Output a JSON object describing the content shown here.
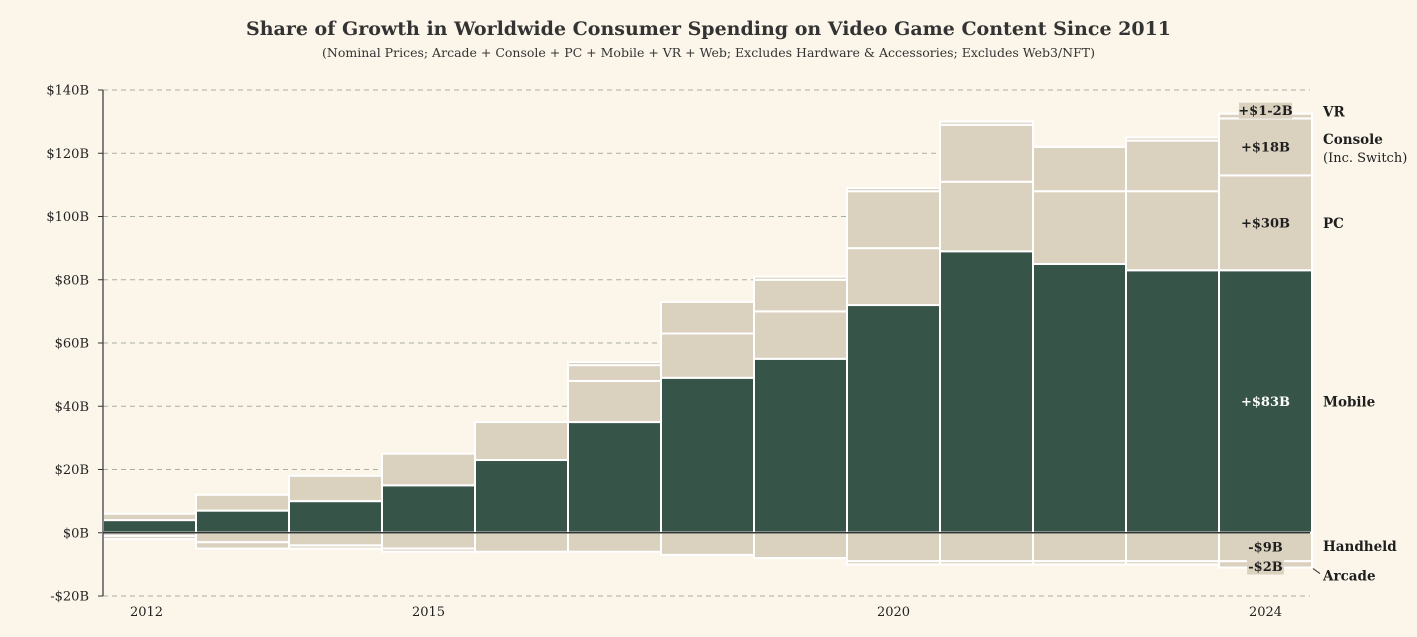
{
  "title": "Share of Growth in Worldwide Consumer Spending on Video Game Content Since 2011",
  "subtitle": "(Nominal Prices; Arcade + Console + PC + Mobile + VR + Web; Excludes Hardware & Accessories; Excludes Web3/NFT)",
  "colors": {
    "background": "#fcf6ea",
    "mobile": "#365447",
    "other": "#dbd1bf",
    "grid": "#a9aea3"
  },
  "chart_data": {
    "type": "bar",
    "stacked": true,
    "x": [
      2012,
      2013,
      2014,
      2015,
      2016,
      2017,
      2018,
      2019,
      2020,
      2021,
      2022,
      2023,
      2024
    ],
    "x_tick_labels": [
      "2012",
      "2015",
      "2020",
      "2024"
    ],
    "x_tick_years": [
      2012,
      2015,
      2020,
      2024
    ],
    "y_ticks": [
      -20,
      0,
      20,
      40,
      60,
      80,
      100,
      120,
      140
    ],
    "y_tick_labels": [
      "-$20B",
      "$0B",
      "$20B",
      "$40B",
      "$60B",
      "$80B",
      "$100B",
      "$120B",
      "$140B"
    ],
    "ylim": [
      -20,
      140
    ],
    "grid": true,
    "series": [
      {
        "name": "Mobile",
        "values": [
          4,
          7,
          10,
          15,
          23,
          35,
          49,
          55,
          72,
          89,
          85,
          83,
          83
        ]
      },
      {
        "name": "PC",
        "values": [
          2,
          5,
          8,
          10,
          12,
          13,
          14,
          15,
          18,
          22,
          23,
          25,
          30
        ]
      },
      {
        "name": "Console",
        "values": [
          0,
          0,
          0,
          0,
          0,
          5,
          10,
          10,
          18,
          18,
          14,
          16,
          18
        ]
      },
      {
        "name": "VR",
        "values": [
          0,
          0,
          0,
          0,
          0,
          1,
          0,
          1,
          1,
          1,
          0,
          1,
          1.5
        ]
      },
      {
        "name": "Handheld",
        "values": [
          -1,
          -3,
          -4,
          -5,
          -6,
          -6,
          -7,
          -8,
          -9,
          -9,
          -9,
          -9,
          -9
        ]
      },
      {
        "name": "Arcade",
        "values": [
          -1,
          -2,
          -1,
          -1,
          0,
          0,
          0,
          0,
          -1,
          -1,
          -1,
          -1,
          -2
        ]
      }
    ],
    "annotations_2024": [
      {
        "series": "VR",
        "label": "+$1-2B"
      },
      {
        "series": "Console",
        "label": "+$18B"
      },
      {
        "series": "PC",
        "label": "+$30B"
      },
      {
        "series": "Mobile",
        "label": "+$83B"
      },
      {
        "series": "Handheld",
        "label": "-$9B"
      },
      {
        "series": "Arcade",
        "label": "-$2B"
      }
    ],
    "legend_labels": [
      {
        "series": "VR",
        "text": "VR"
      },
      {
        "series": "Console",
        "text": "Console",
        "sub": "(Inc. Switch)"
      },
      {
        "series": "PC",
        "text": "PC"
      },
      {
        "series": "Mobile",
        "text": "Mobile"
      },
      {
        "series": "Handheld",
        "text": "Handheld"
      },
      {
        "series": "Arcade",
        "text": "Arcade"
      }
    ]
  }
}
